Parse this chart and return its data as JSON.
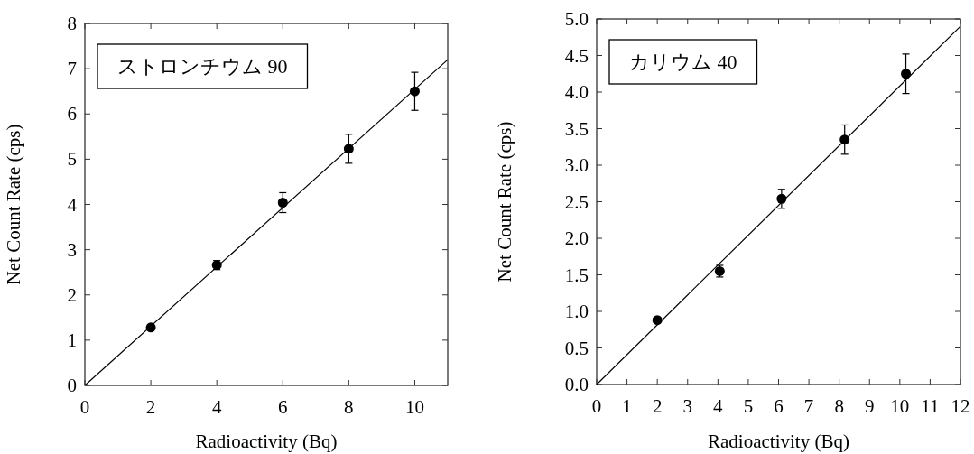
{
  "chart_data": [
    {
      "type": "scatter",
      "xlabel": "Radioactivity (Bq)",
      "ylabel": "Net Count Rate (cps)",
      "annotations": [
        "ストロンチウム 90"
      ],
      "xlim": [
        0,
        11
      ],
      "ylim": [
        0,
        8
      ],
      "xticks": [
        0,
        2,
        4,
        6,
        8,
        10
      ],
      "yticks": [
        0,
        1,
        2,
        3,
        4,
        5,
        6,
        7,
        8
      ],
      "grid": false,
      "series": [
        {
          "type": "scatter",
          "marker": "circle",
          "color": "#000000",
          "x": [
            2,
            4,
            6,
            8,
            10
          ],
          "values": [
            1.28,
            2.66,
            4.04,
            5.23,
            6.5
          ],
          "errors": [
            null,
            0.1,
            0.22,
            0.32,
            0.42
          ]
        },
        {
          "type": "line",
          "line_style": "solid",
          "color": "#000000",
          "x": [
            0,
            11
          ],
          "values": [
            0,
            7.2
          ]
        }
      ]
    },
    {
      "type": "scatter",
      "xlabel": "Radioactivity (Bq)",
      "ylabel": "Net Count Rate (cps)",
      "annotations": [
        "カリウム 40"
      ],
      "xlim": [
        0,
        12
      ],
      "ylim": [
        0,
        5
      ],
      "xticks": [
        0,
        1,
        2,
        3,
        4,
        5,
        6,
        7,
        8,
        9,
        10,
        11,
        12
      ],
      "yticks": [
        {
          "value": 0,
          "label": "0.0"
        },
        0.5,
        {
          "value": 1,
          "label": "1.0"
        },
        1.5,
        {
          "value": 2,
          "label": "2.0"
        },
        2.5,
        {
          "value": 3,
          "label": "3.0"
        },
        3.5,
        {
          "value": 4,
          "label": "4.0"
        },
        4.5,
        {
          "value": 5,
          "label": "5.0"
        }
      ],
      "grid": false,
      "series": [
        {
          "type": "scatter",
          "marker": "circle",
          "color": "#000000",
          "x": [
            2,
            4.06,
            6.1,
            8.18,
            10.2
          ],
          "values": [
            0.88,
            1.55,
            2.54,
            3.35,
            4.25
          ],
          "errors": [
            null,
            0.08,
            0.13,
            0.2,
            0.27
          ]
        },
        {
          "type": "line",
          "line_style": "solid",
          "color": "#000000",
          "x": [
            0,
            12
          ],
          "values": [
            0,
            4.9
          ]
        }
      ]
    }
  ]
}
